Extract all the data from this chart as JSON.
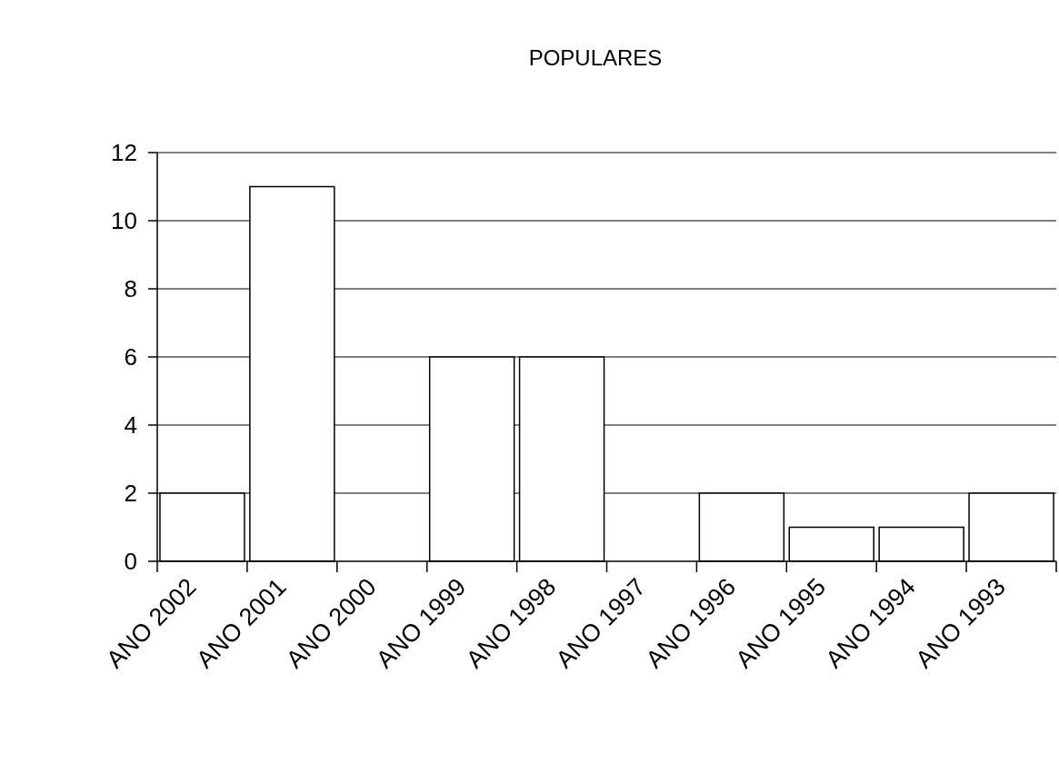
{
  "chart_data": {
    "type": "bar",
    "title": "POPULARES",
    "categories": [
      "ANO 2002",
      "ANO 2001",
      "ANO 2000",
      "ANO 1999",
      "ANO 1998",
      "ANO 1997",
      "ANO 1996",
      "ANO 1995",
      "ANO 1994",
      "ANO 1993"
    ],
    "values": [
      2,
      11,
      0,
      6,
      6,
      0,
      2,
      1,
      1,
      2
    ],
    "color": "#ffffff",
    "ylim": [
      0,
      12
    ],
    "yticks": [
      0,
      2,
      4,
      6,
      8,
      10,
      12
    ],
    "grid": "y"
  }
}
